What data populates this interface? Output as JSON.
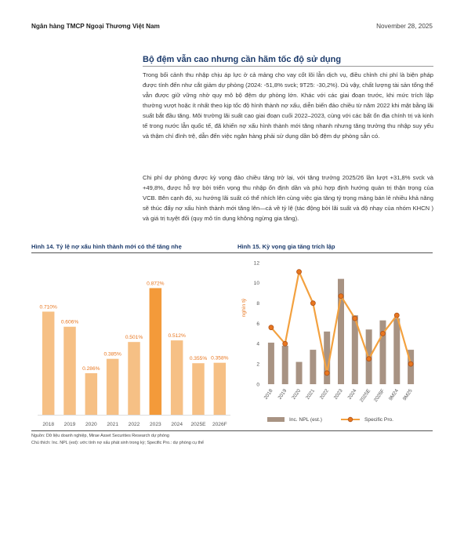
{
  "header": {
    "bank": "Ngân hàng TMCP Ngoại Thương Việt Nam",
    "date": "November 28, 2025"
  },
  "section": {
    "title": "Bộ đệm vẫn cao nhưng cần hãm tốc độ sử dụng",
    "paragraph1": "Trong bối cảnh thu nhập chịu áp lực ở cả mảng cho vay cốt lõi lẫn dịch vụ, điều chỉnh chi phí là biện pháp được tính đến như cắt giảm dự phòng (2024: -51,8% svck; 9T25: -30,2%). Dù vậy, chất lượng tài sản tổng thể vẫn được giữ vững nhờ quy mô bộ đệm dự phòng lớn. Khác với các giai đoạn trước, khi mức trích lập thường vượt hoặc ít nhất theo kịp tốc độ hình thành nợ xấu, diễn biến đảo chiều từ năm 2022 khi mặt bằng lãi suất bắt đầu tăng. Môi trường lãi suất cao giai đoạn cuối 2022–2023, cùng với các bất ổn địa chính trị và kinh tế trong nước lẫn quốc tế, đã khiến nợ xấu hình thành mới tăng nhanh nhưng tăng trưởng thu nhập suy yếu và thậm chí đình trệ, dẫn đến việc ngân hàng phải sử dụng dần bộ đệm dự phòng sẵn có.",
    "paragraph2": "Chi phí dự phòng được kỳ vọng đảo chiều tăng trở lại, với tăng trưởng 2025/26 lần lượt +31,8% svck và +49,8%, được hỗ trợ bởi triển vọng thu nhập ổn định dần và phù hợp định hướng quản trị thận trọng của VCB. Bên cạnh đó, xu hướng lãi suất có thể nhích lên cùng việc gia tăng tỷ trọng mảng bán lẻ nhiều khả năng sẽ thúc đẩy nợ xấu hình thành mới tăng lên—cả về tỷ lệ (tác động bởi lãi suất và độ nhạy của nhóm KHCN ) và giá trị tuyệt đối (quy mô tín dụng không ngừng gia tăng)."
  },
  "figures": {
    "fig14_title": "Hình 14. Tỷ lệ nợ xấu hình thành mới có thể tăng nhẹ",
    "fig15_title": "Hình 15. Kỳ vọng gia tăng trích lập"
  },
  "notes": {
    "source": "Nguồn: Dữ liệu doanh nghiệp, Mirae Asset Securities Research dự phóng",
    "explanation": "Chú thích: Inc. NPL (est): ước tính nợ xấu phát sinh trong kỳ; Specific Pro.: dự phòng cụ thể"
  },
  "colors": {
    "bar_light": "#f6c085",
    "bar_highlight": "#f39a3a",
    "data_label": "#e8761f",
    "bar_grey": "#a89383",
    "line_orange": "#f3a13f",
    "marker_fill": "#e8761f",
    "marker_edge": "#b0541a",
    "title_blue": "#1b3a6b"
  },
  "chart_data": [
    {
      "type": "bar",
      "categories": [
        "2018",
        "2019",
        "2020",
        "2021",
        "2022",
        "2023",
        "2024",
        "2025E",
        "2026F"
      ],
      "values": [
        0.71,
        0.606,
        0.286,
        0.385,
        0.501,
        0.872,
        0.512,
        0.355,
        0.358
      ],
      "data_labels": [
        "0.710%",
        "0.606%",
        "0.286%",
        "0.385%",
        "0.501%",
        "0.872%",
        "0.512%",
        "0.355%",
        "0.358%"
      ],
      "highlight_index": 5,
      "ylim": [
        0,
        0.95
      ],
      "grid": false
    },
    {
      "type": "bar",
      "categories": [
        "2018",
        "2019",
        "2020",
        "2021",
        "2022",
        "2023",
        "2024",
        "2025E",
        "2026F",
        "9M24",
        "9M25"
      ],
      "ylabel": "nghìn tỷ",
      "yticks": [
        0,
        2,
        4,
        6,
        8,
        10,
        12
      ],
      "ylim": [
        0,
        12
      ],
      "grid": false,
      "legend_position": "bottom",
      "series": [
        {
          "name": "Inc. NPL (est.)",
          "type": "bar",
          "values": [
            4.1,
            3.8,
            2.2,
            3.4,
            5.2,
            10.4,
            6.8,
            5.4,
            6.3,
            6.5,
            3.4
          ]
        },
        {
          "name": "Specific Pro.",
          "type": "line",
          "values": [
            5.6,
            4.0,
            11.1,
            8.0,
            1.1,
            8.7,
            6.5,
            2.5,
            5.0,
            6.8,
            2.0
          ]
        }
      ]
    }
  ]
}
